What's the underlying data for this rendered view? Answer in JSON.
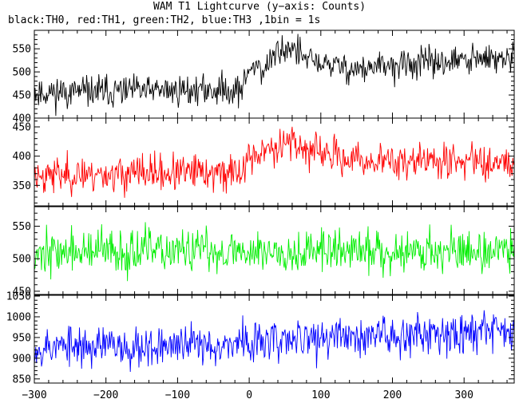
{
  "title": "WAM T1 Lightcurve (y−axis: Counts)",
  "subtitle": "black:TH0, red:TH1, green:TH2, blue:TH3 ,1bin = 1s",
  "chart_data": {
    "type": "line",
    "x": {
      "range": [
        -300,
        370
      ],
      "ticks": [
        -300,
        -200,
        -100,
        0,
        100,
        200,
        300
      ],
      "tick_labels": [
        "−300",
        "−200",
        "−100",
        "0",
        "100",
        "200",
        "300"
      ]
    },
    "panels": [
      {
        "channel": "TH0",
        "color": "#000000",
        "ylim": [
          400,
          590
        ],
        "yticks": [
          400,
          450,
          500,
          550
        ],
        "pre_level": 455,
        "post_peak": 560,
        "end_level": 525,
        "noise": 26,
        "seed": 11,
        "key_points": [
          [
            -300,
            455
          ],
          [
            -10,
            462
          ],
          [
            0,
            505
          ],
          [
            10,
            520
          ],
          [
            20,
            500
          ],
          [
            40,
            545
          ],
          [
            60,
            555
          ],
          [
            80,
            525
          ],
          [
            150,
            505
          ],
          [
            250,
            520
          ],
          [
            370,
            530
          ]
        ]
      },
      {
        "channel": "TH1",
        "color": "#ff0000",
        "ylim": [
          315,
          465
        ],
        "yticks": [
          350,
          400,
          450
        ],
        "seed": 23,
        "noise": 24,
        "key_points": [
          [
            -300,
            368
          ],
          [
            -10,
            372
          ],
          [
            0,
            400
          ],
          [
            20,
            405
          ],
          [
            40,
            420
          ],
          [
            55,
            430
          ],
          [
            80,
            410
          ],
          [
            150,
            392
          ],
          [
            250,
            392
          ],
          [
            370,
            392
          ]
        ]
      },
      {
        "channel": "TH2",
        "color": "#00ee00",
        "ylim": [
          445,
          580
        ],
        "yticks": [
          450,
          500,
          550
        ],
        "seed": 37,
        "noise": 26,
        "key_points": [
          [
            -300,
            510
          ],
          [
            0,
            512
          ],
          [
            100,
            512
          ],
          [
            250,
            512
          ],
          [
            370,
            512
          ]
        ]
      },
      {
        "channel": "TH3",
        "color": "#0000ff",
        "ylim": [
          840,
          1052
        ],
        "yticks": [
          850,
          900,
          950,
          1000,
          1050
        ],
        "seed": 53,
        "noise": 38,
        "key_points": [
          [
            -300,
            928
          ],
          [
            -100,
            930
          ],
          [
            0,
            938
          ],
          [
            100,
            948
          ],
          [
            250,
            962
          ],
          [
            370,
            970
          ]
        ]
      }
    ]
  }
}
